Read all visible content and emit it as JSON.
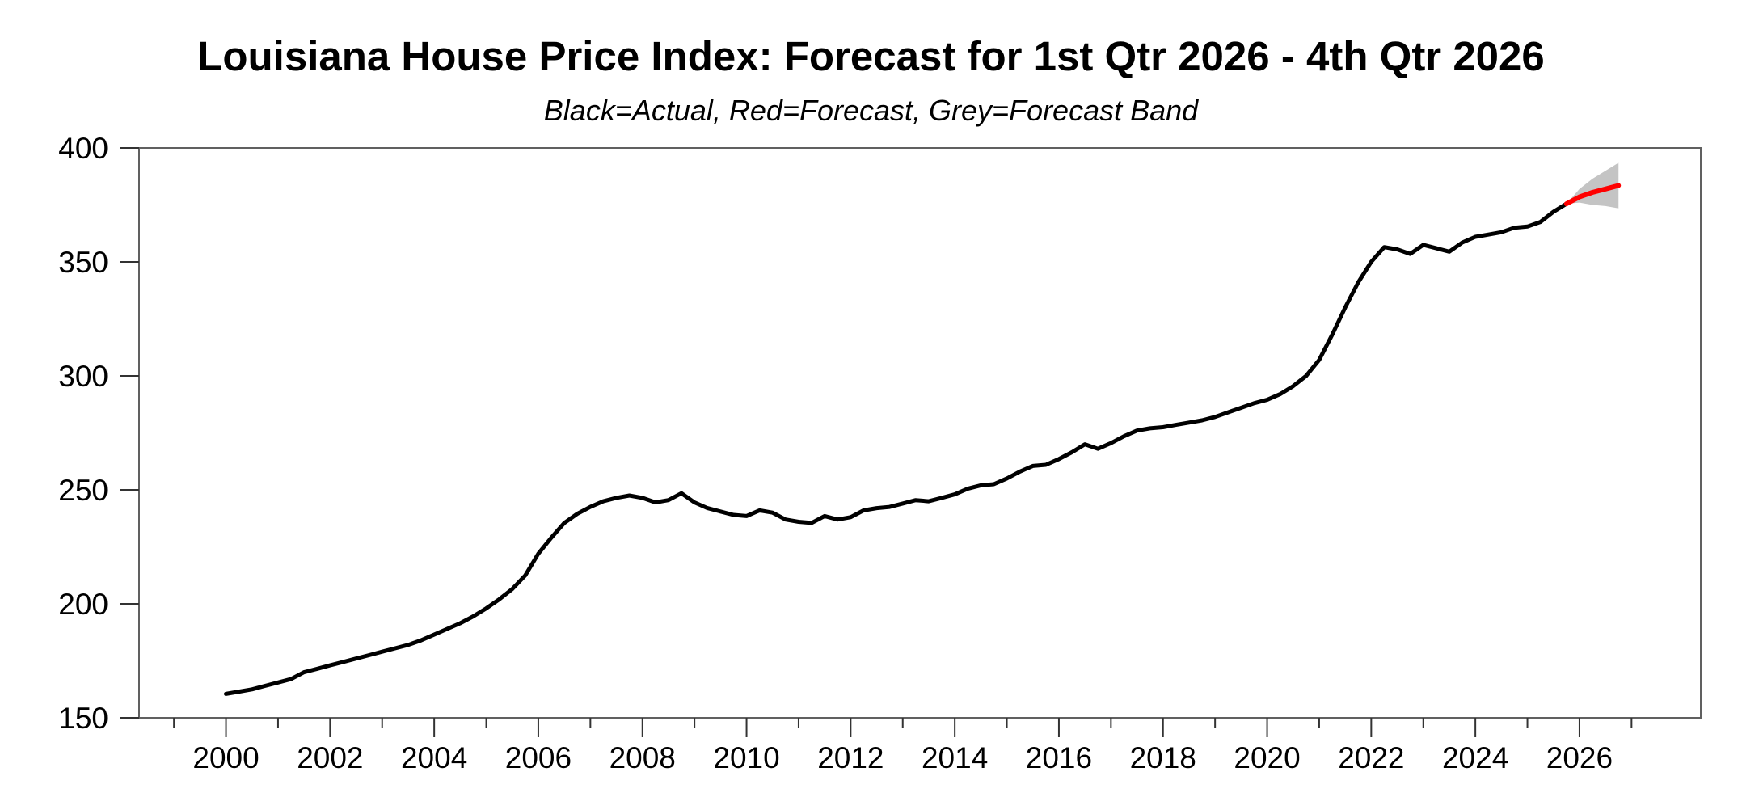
{
  "header": {
    "title": "Louisiana House Price Index: Forecast for 1st Qtr 2026 - 4th Qtr 2026",
    "subtitle": "Black=Actual, Red=Forecast, Grey=Forecast Band"
  },
  "colors": {
    "actual_line": "#000000",
    "forecast_line": "#ff0000",
    "forecast_band": "#c4c4c4",
    "plot_border": "#606060",
    "tick": "#333333",
    "background": "#ffffff"
  },
  "chart_data": {
    "type": "line",
    "title": "Louisiana House Price Index: Forecast for 1st Qtr 2026 - 4th Qtr 2026",
    "subtitle": "Black=Actual, Red=Forecast, Grey=Forecast Band",
    "xlabel": "",
    "ylabel": "",
    "grid": false,
    "legend_position": "none",
    "x_range": [
      1998.33,
      2028.33
    ],
    "y_range": [
      150,
      400
    ],
    "y_ticks": [
      400,
      350,
      300,
      250,
      200,
      150
    ],
    "x_major_ticks": [
      2000,
      2002,
      2004,
      2006,
      2008,
      2010,
      2012,
      2014,
      2016,
      2018,
      2020,
      2022,
      2024,
      2026
    ],
    "x_minor_ticks": [
      1999,
      2001,
      2003,
      2005,
      2007,
      2009,
      2011,
      2013,
      2015,
      2017,
      2019,
      2021,
      2023,
      2025,
      2027
    ],
    "series": [
      {
        "name": "Actual",
        "color": "#000000",
        "x_start": 2000.0,
        "x_step": 0.25,
        "period_start_label": "2000Q1",
        "period_end_label": "2025Q4",
        "values": [
          160.5,
          161.5,
          162.5,
          164,
          165.5,
          167,
          170,
          171.5,
          173,
          174.5,
          176,
          177.5,
          179,
          180.5,
          182,
          184,
          186.5,
          189,
          191.5,
          194.5,
          198,
          202,
          206.5,
          212.5,
          222,
          229,
          235.5,
          239.5,
          242.5,
          245,
          246.5,
          247.5,
          246.5,
          244.5,
          245.5,
          248.5,
          244.5,
          242,
          240.5,
          239,
          238.5,
          241,
          240,
          237,
          236,
          235.5,
          238.5,
          237,
          238,
          241,
          242,
          242.5,
          244,
          245.5,
          245,
          246.5,
          248,
          250.5,
          252,
          252.5,
          255,
          258,
          260.5,
          261,
          263.5,
          266.5,
          270,
          268,
          270.5,
          273.5,
          276,
          277,
          277.5,
          278.5,
          279.5,
          280.5,
          282,
          284,
          286,
          288,
          289.5,
          292,
          295.5,
          300,
          307,
          318,
          330,
          341,
          350,
          356.5,
          355.5,
          353.5,
          357.5,
          356,
          354.5,
          358.5,
          361,
          362,
          363,
          365,
          365.5,
          367.5,
          372,
          375.5
        ]
      },
      {
        "name": "Forecast",
        "color": "#ff0000",
        "x": [
          2025.75,
          2026.0,
          2026.25,
          2026.5,
          2026.75
        ],
        "period_labels": [
          "2025Q4",
          "2026Q1",
          "2026Q2",
          "2026Q3",
          "2026Q4"
        ],
        "values": [
          375.5,
          378.5,
          380.5,
          382,
          383.5
        ]
      },
      {
        "name": "Forecast Band",
        "color": "#c4c4c4",
        "x": [
          2025.75,
          2026.0,
          2026.25,
          2026.5,
          2026.75
        ],
        "period_labels": [
          "2025Q4",
          "2026Q1",
          "2026Q2",
          "2026Q3",
          "2026Q4"
        ],
        "upper": [
          375.5,
          382,
          386.5,
          390,
          393.5
        ],
        "lower": [
          375.5,
          376,
          375,
          374.5,
          373.5
        ]
      }
    ]
  }
}
